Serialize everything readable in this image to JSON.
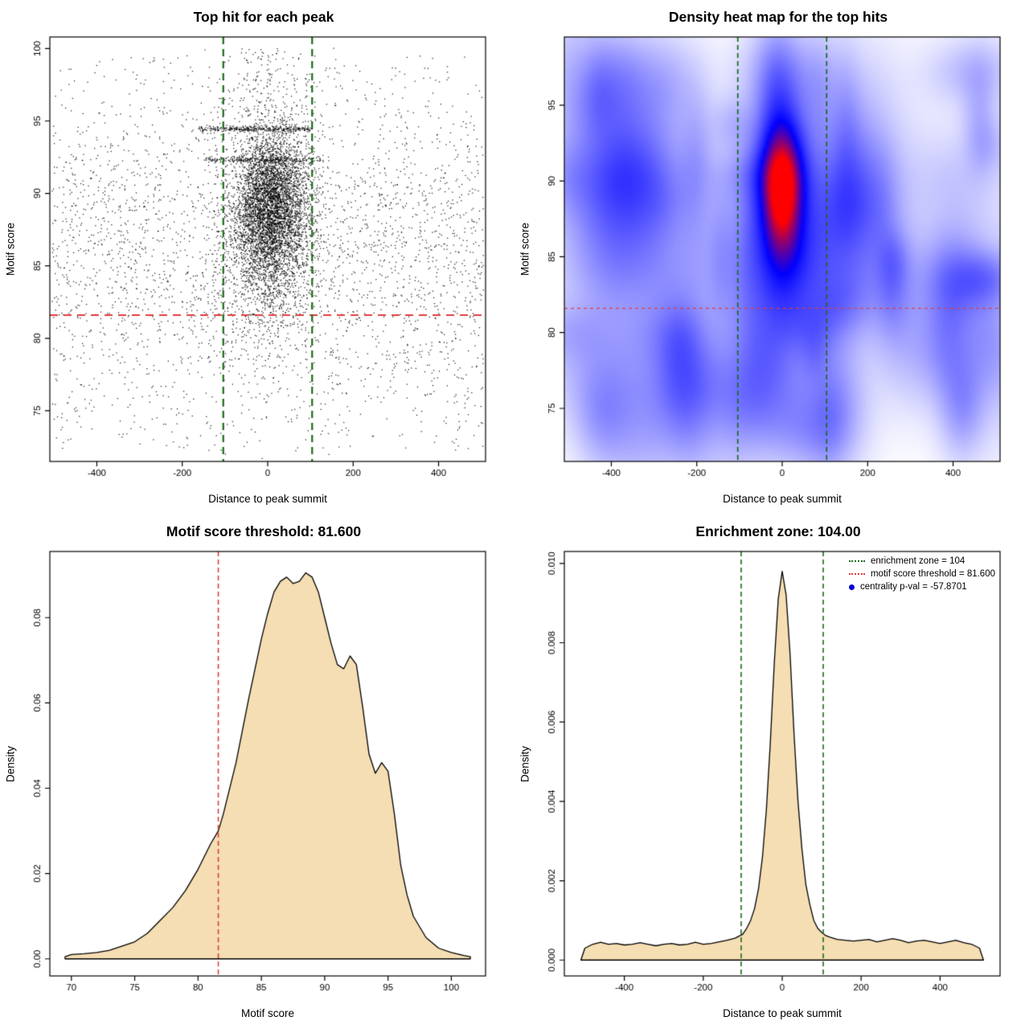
{
  "colors": {
    "background": "#ffffff",
    "threshold_red": "#e03c3c",
    "zone_green": "#1a6b1a",
    "density_fill": "#f5deb3",
    "curve_stroke": "#000000",
    "point_color": "#000000",
    "legend_dot_blue": "#0000cd",
    "heat_ramp": [
      "#ffffff",
      "#0000ff",
      "#ff0000"
    ]
  },
  "chart_data": [
    {
      "id": "top-hits-scatter",
      "type": "scatter",
      "title": "Top hit for each peak",
      "xlabel": "Distance to peak summit",
      "ylabel": "Motif score",
      "xlim": [
        -510,
        510
      ],
      "ylim": [
        71.5,
        100.8
      ],
      "xticks": [
        -400,
        -200,
        0,
        200,
        400
      ],
      "xtick_labels": [
        "-400",
        "-200",
        "0",
        "200",
        "400"
      ],
      "yticks": [
        75,
        80,
        85,
        90,
        95,
        100
      ],
      "ytick_labels": [
        "75",
        "80",
        "85",
        "90",
        "95",
        "100"
      ],
      "motif_score_threshold": 81.6,
      "enrichment_zone": [
        -104,
        104
      ],
      "points": {
        "n_background": 3200,
        "background_y_mean": 86,
        "background_y_sd": 5.4,
        "n_cluster": 4800,
        "cluster_x_mean": 8,
        "cluster_x_sd": 44,
        "cluster_y_mean": 89.1,
        "cluster_y_sd": 2.6,
        "n_cluster_wide": 900,
        "n_high_tail": 150,
        "streaks": [
          {
            "y": 94.45,
            "x_min": -160,
            "x_max": 105,
            "n": 330
          },
          {
            "y": 92.3,
            "x_min": -150,
            "x_max": 125,
            "n": 230
          }
        ]
      }
    },
    {
      "id": "density-heatmap",
      "type": "heatmap",
      "title": "Density heat map for the top hits",
      "xlabel": "Distance to peak summit",
      "ylabel": "Motif score",
      "xlim": [
        -510,
        510
      ],
      "ylim": [
        71.5,
        99.5
      ],
      "xticks": [
        -400,
        -200,
        0,
        200,
        400
      ],
      "xtick_labels": [
        "-400",
        "-200",
        "0",
        "200",
        "400"
      ],
      "yticks": [
        75,
        80,
        85,
        90,
        95
      ],
      "ytick_labels": [
        "75",
        "80",
        "85",
        "90",
        "95"
      ],
      "motif_score_threshold": 81.6,
      "enrichment_zone": [
        -104,
        104
      ],
      "hotspot": {
        "x": 0,
        "y": 89.3,
        "x_sd": 30,
        "y_sd": 2.6
      },
      "colormap": [
        "#ffffff",
        "#0000ff",
        "#ff0000"
      ]
    },
    {
      "id": "motif-score-density",
      "type": "area",
      "title": "Motif score threshold: 81.600",
      "xlabel": "Motif score",
      "ylabel": "Density",
      "xlim": [
        68.3,
        102.7
      ],
      "ylim": [
        -0.004,
        0.0955
      ],
      "xticks": [
        70,
        75,
        80,
        85,
        90,
        95,
        100
      ],
      "xtick_labels": [
        "70",
        "75",
        "80",
        "85",
        "90",
        "95",
        "100"
      ],
      "yticks": [
        0,
        0.02,
        0.04,
        0.06,
        0.08
      ],
      "ytick_labels": [
        "0.00",
        "0.02",
        "0.04",
        "0.06",
        "0.08"
      ],
      "threshold": 81.6,
      "x": [
        69.5,
        70,
        71,
        72,
        73,
        74,
        75,
        76,
        77,
        78,
        79,
        80,
        81,
        81.6,
        82,
        83,
        84,
        85,
        85.5,
        86,
        86.5,
        87,
        87.5,
        88,
        88.5,
        89,
        89.5,
        90,
        90.5,
        91,
        91.5,
        92,
        92.5,
        93,
        93.5,
        94,
        94.5,
        95,
        95.5,
        96,
        96.5,
        97,
        98,
        99,
        100,
        101,
        101.5
      ],
      "y": [
        0.0005,
        0.001,
        0.0012,
        0.0015,
        0.002,
        0.003,
        0.004,
        0.006,
        0.009,
        0.012,
        0.016,
        0.021,
        0.027,
        0.03,
        0.034,
        0.046,
        0.061,
        0.075,
        0.081,
        0.086,
        0.0885,
        0.0895,
        0.088,
        0.0885,
        0.0905,
        0.0895,
        0.086,
        0.08,
        0.074,
        0.069,
        0.068,
        0.071,
        0.069,
        0.059,
        0.048,
        0.0435,
        0.046,
        0.044,
        0.034,
        0.022,
        0.015,
        0.01,
        0.005,
        0.0025,
        0.0015,
        0.0008,
        0.0005
      ]
    },
    {
      "id": "distance-density",
      "type": "area",
      "title": "Enrichment zone: 104.00",
      "xlabel": "Distance to peak summit",
      "ylabel": "Density",
      "xlim": [
        -552,
        552
      ],
      "ylim": [
        -0.0004,
        0.0103
      ],
      "xticks": [
        -400,
        -200,
        0,
        200,
        400
      ],
      "xtick_labels": [
        "-400",
        "-200",
        "0",
        "200",
        "400"
      ],
      "yticks": [
        0,
        0.002,
        0.004,
        0.006,
        0.008,
        0.01
      ],
      "ytick_labels": [
        "0.000",
        "0.002",
        "0.004",
        "0.006",
        "0.008",
        "0.010"
      ],
      "enrichment_zone": [
        -104,
        104
      ],
      "x": [
        -510,
        -500,
        -480,
        -460,
        -440,
        -420,
        -400,
        -380,
        -360,
        -340,
        -320,
        -300,
        -280,
        -260,
        -240,
        -220,
        -200,
        -180,
        -160,
        -140,
        -120,
        -110,
        -100,
        -90,
        -80,
        -70,
        -60,
        -50,
        -40,
        -30,
        -20,
        -10,
        0,
        10,
        20,
        30,
        40,
        50,
        60,
        70,
        80,
        90,
        100,
        110,
        120,
        140,
        160,
        180,
        200,
        220,
        240,
        260,
        280,
        300,
        320,
        340,
        360,
        380,
        400,
        420,
        440,
        460,
        480,
        500,
        510
      ],
      "y": [
        0.0,
        0.0003,
        0.0004,
        0.00045,
        0.0004,
        0.00042,
        0.00038,
        0.0004,
        0.00044,
        0.0004,
        0.00036,
        0.0004,
        0.00042,
        0.00038,
        0.0004,
        0.00045,
        0.0004,
        0.00042,
        0.00046,
        0.0005,
        0.00055,
        0.0006,
        0.00065,
        0.0008,
        0.001,
        0.0013,
        0.0018,
        0.0026,
        0.0038,
        0.0055,
        0.0075,
        0.0091,
        0.0098,
        0.0092,
        0.0077,
        0.0057,
        0.004,
        0.0028,
        0.0019,
        0.0014,
        0.001,
        0.0008,
        0.0007,
        0.00062,
        0.00058,
        0.00052,
        0.0005,
        0.00048,
        0.0005,
        0.00052,
        0.00046,
        0.0005,
        0.00054,
        0.0005,
        0.00044,
        0.00048,
        0.0005,
        0.00046,
        0.00042,
        0.00046,
        0.0005,
        0.00044,
        0.0004,
        0.0003,
        0.0
      ],
      "legend": [
        {
          "marker": "dotted-line",
          "color": "#1a6b1a",
          "label": "enrichment zone = 104"
        },
        {
          "marker": "dotted-line",
          "color": "#e03c3c",
          "label": "motif score threshold = 81.600"
        },
        {
          "marker": "dot",
          "color": "#0000cd",
          "label": "centrality p-val = -57.8701"
        }
      ]
    }
  ]
}
